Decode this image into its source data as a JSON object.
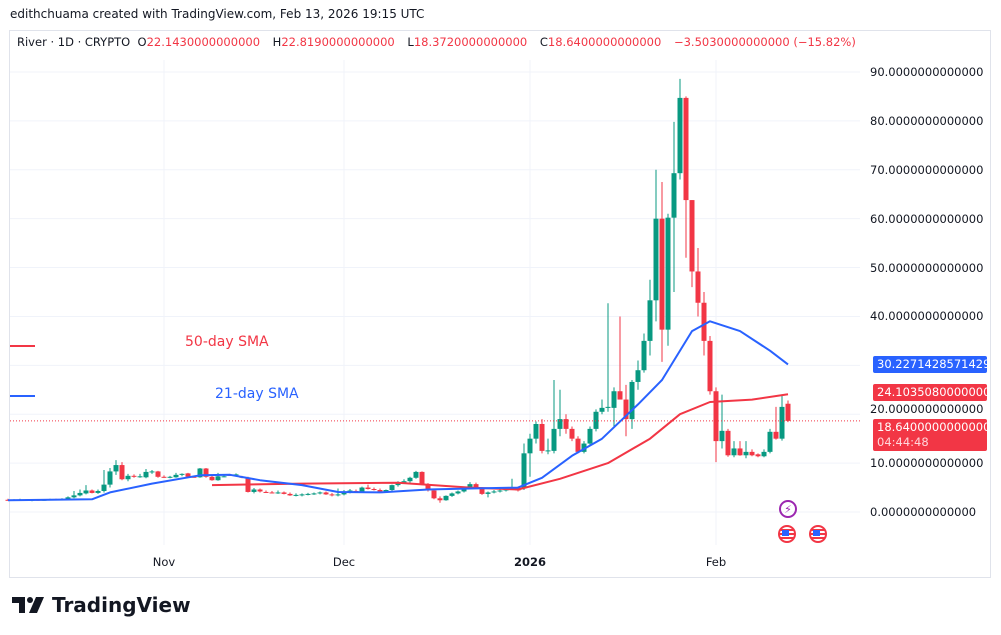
{
  "credit": "edithchuama created with TradingView.com, Feb 13, 2026 19:15 UTC",
  "legend": {
    "symbol": "River · 1D · CRYPTO",
    "open_key": "O",
    "open": "22.1430000000000",
    "high_key": "H",
    "high": "22.8190000000000",
    "low_key": "L",
    "low": "18.3720000000000",
    "close_key": "C",
    "close": "18.6400000000000",
    "change": "−3.5030000000000 (−15.82%)"
  },
  "colors": {
    "up": "#089981",
    "down": "#f23645",
    "sma21": "#2962ff",
    "sma50": "#f23645",
    "grid": "#f0f3fa"
  },
  "annotations": {
    "sma50_label": "50-day SMA",
    "sma21_label": "21-day SMA"
  },
  "price_tags": {
    "sma21": "30.2271428571429",
    "sma50": "24.1035080000000",
    "last": "18.6400000000000",
    "countdown": "04:44:48"
  },
  "logo": {
    "text": "TradingView"
  },
  "icons": [
    "lightning-event-icon",
    "us-flag-event-icon",
    "us-flag-event-icon"
  ],
  "chart_data": {
    "type": "candlestick",
    "ylim": [
      -10,
      100
    ],
    "y_ticks": [
      {
        "v": 90,
        "label": "90.0000000000000"
      },
      {
        "v": 80,
        "label": "80.0000000000000"
      },
      {
        "v": 70,
        "label": "70.0000000000000"
      },
      {
        "v": 60,
        "label": "60.0000000000000"
      },
      {
        "v": 50,
        "label": "50.0000000000000"
      },
      {
        "v": 40,
        "label": "40.0000000000000"
      },
      {
        "v": 30,
        "label": ""
      },
      {
        "v": 20,
        "label": "20.0000000000000"
      },
      {
        "v": 10,
        "label": "10.0000000000000"
      },
      {
        "v": 0,
        "label": "0.0000000000000"
      }
    ],
    "x_ticks": [
      {
        "i": 26,
        "label": "Nov",
        "bold": false
      },
      {
        "i": 56,
        "label": "Dec",
        "bold": false
      },
      {
        "i": 87,
        "label": "2026",
        "bold": true
      },
      {
        "i": 118,
        "label": "Feb",
        "bold": false
      }
    ],
    "candles_ohlc": [
      [
        2.5,
        2.7,
        2.3,
        2.4
      ],
      [
        2.4,
        2.6,
        2.3,
        2.5
      ],
      [
        2.5,
        2.7,
        2.4,
        2.5
      ],
      [
        2.5,
        2.6,
        2.3,
        2.4
      ],
      [
        2.4,
        2.6,
        2.2,
        2.5
      ],
      [
        2.5,
        2.6,
        2.3,
        2.4
      ],
      [
        2.4,
        2.6,
        2.3,
        2.5
      ],
      [
        2.5,
        2.7,
        2.4,
        2.6
      ],
      [
        2.6,
        2.7,
        2.4,
        2.5
      ],
      [
        2.5,
        2.8,
        2.4,
        2.6
      ],
      [
        2.6,
        3.2,
        2.5,
        3.0
      ],
      [
        3.0,
        4.3,
        2.8,
        3.4
      ],
      [
        3.4,
        4.6,
        3.2,
        3.9
      ],
      [
        3.8,
        5.5,
        3.6,
        4.4
      ],
      [
        4.4,
        4.6,
        3.8,
        3.9
      ],
      [
        3.9,
        4.6,
        3.7,
        4.3
      ],
      [
        4.3,
        8.6,
        4.0,
        5.6
      ],
      [
        5.6,
        9.0,
        5.0,
        8.3
      ],
      [
        8.3,
        10.6,
        7.6,
        9.6
      ],
      [
        9.6,
        10.2,
        6.5,
        6.7
      ],
      [
        6.7,
        7.8,
        6.3,
        7.4
      ],
      [
        7.4,
        7.7,
        7.0,
        7.2
      ],
      [
        7.2,
        7.8,
        7.0,
        7.3
      ],
      [
        7.1,
        8.8,
        6.9,
        8.2
      ],
      [
        8.2,
        8.6,
        7.8,
        8.3
      ],
      [
        8.3,
        8.4,
        7.0,
        7.2
      ],
      [
        7.2,
        7.5,
        7.0,
        7.1
      ],
      [
        7.1,
        7.4,
        6.9,
        7.2
      ],
      [
        7.1,
        8.0,
        7.0,
        7.6
      ],
      [
        7.6,
        7.9,
        7.3,
        7.8
      ],
      [
        7.9,
        8.0,
        7.1,
        7.2
      ],
      [
        7.2,
        7.4,
        7.0,
        7.1
      ],
      [
        7.1,
        9.0,
        7.0,
        8.9
      ],
      [
        8.9,
        9.0,
        7.0,
        7.2
      ],
      [
        7.2,
        7.4,
        6.4,
        6.5
      ],
      [
        6.5,
        8.0,
        6.4,
        7.3
      ],
      [
        7.3,
        7.5,
        7.1,
        7.3
      ],
      [
        7.6,
        7.8,
        7.4,
        7.5
      ],
      [
        7.5,
        7.9,
        7.3,
        7.7
      ],
      [
        7.2,
        7.4,
        6.9,
        7.0
      ],
      [
        7.0,
        7.2,
        4.0,
        4.1
      ],
      [
        4.1,
        4.9,
        3.8,
        4.6
      ],
      [
        4.6,
        4.8,
        4.0,
        4.2
      ],
      [
        4.1,
        4.4,
        3.9,
        4.0
      ],
      [
        4.0,
        4.3,
        3.8,
        3.9
      ],
      [
        3.9,
        4.4,
        3.7,
        4.0
      ],
      [
        4.0,
        4.2,
        3.6,
        3.7
      ],
      [
        3.7,
        4.0,
        3.3,
        3.4
      ],
      [
        3.4,
        3.8,
        3.2,
        3.5
      ],
      [
        3.5,
        3.8,
        3.2,
        3.6
      ],
      [
        3.6,
        3.9,
        3.4,
        3.7
      ],
      [
        3.7,
        4.0,
        3.5,
        3.8
      ],
      [
        3.8,
        4.2,
        3.6,
        4.0
      ],
      [
        4.0,
        4.2,
        3.5,
        3.6
      ],
      [
        3.6,
        3.9,
        3.2,
        3.4
      ],
      [
        3.4,
        4.8,
        3.2,
        3.6
      ],
      [
        3.6,
        4.5,
        3.4,
        4.1
      ],
      [
        4.1,
        4.7,
        3.8,
        4.4
      ],
      [
        4.3,
        4.6,
        3.9,
        4.1
      ],
      [
        4.1,
        5.2,
        3.9,
        5.0
      ],
      [
        5.0,
        5.6,
        4.6,
        4.7
      ],
      [
        4.7,
        5.0,
        4.4,
        4.5
      ],
      [
        4.5,
        4.8,
        4.1,
        4.2
      ],
      [
        4.2,
        4.6,
        3.9,
        4.5
      ],
      [
        4.5,
        5.6,
        4.3,
        5.5
      ],
      [
        5.5,
        6.3,
        5.2,
        6.0
      ],
      [
        6.0,
        6.7,
        5.8,
        6.3
      ],
      [
        6.3,
        7.2,
        6.0,
        7.0
      ],
      [
        7.0,
        8.4,
        6.8,
        8.2
      ],
      [
        8.2,
        8.3,
        5.5,
        5.7
      ],
      [
        5.7,
        5.9,
        4.2,
        4.4
      ],
      [
        4.4,
        4.6,
        2.6,
        2.8
      ],
      [
        2.8,
        3.2,
        1.9,
        2.4
      ],
      [
        2.4,
        3.4,
        2.3,
        3.3
      ],
      [
        3.3,
        4.0,
        3.1,
        3.8
      ],
      [
        3.8,
        4.4,
        3.6,
        4.2
      ],
      [
        4.2,
        5.0,
        4.0,
        4.8
      ],
      [
        4.8,
        6.1,
        4.6,
        5.7
      ],
      [
        5.7,
        6.0,
        4.8,
        4.9
      ],
      [
        4.9,
        5.1,
        3.5,
        3.7
      ],
      [
        3.7,
        4.2,
        3.0,
        4.0
      ],
      [
        4.0,
        4.5,
        3.8,
        4.2
      ],
      [
        4.2,
        4.6,
        4.0,
        4.4
      ],
      [
        4.4,
        5.0,
        4.2,
        4.8
      ],
      [
        4.8,
        6.8,
        4.5,
        5.0
      ],
      [
        5.0,
        5.2,
        4.2,
        4.4
      ],
      [
        5,
        14,
        4.5,
        12
      ],
      [
        12,
        16,
        7.2,
        15
      ],
      [
        15,
        18.5,
        14,
        18
      ],
      [
        18,
        19,
        12,
        12.5
      ],
      [
        12.5,
        15,
        11.8,
        12.6
      ],
      [
        12.5,
        27,
        12,
        17
      ],
      [
        17,
        25,
        15.5,
        19
      ],
      [
        19,
        20,
        16,
        17
      ],
      [
        17,
        17.5,
        14.5,
        15
      ],
      [
        15,
        15.5,
        12,
        12.3
      ],
      [
        12.3,
        14.5,
        12,
        14
      ],
      [
        14,
        17.5,
        13.5,
        17
      ],
      [
        17,
        21,
        16.5,
        20.5
      ],
      [
        20.5,
        23,
        20,
        21.3
      ],
      [
        21.3,
        42.7,
        20.5,
        21.5
      ],
      [
        21.3,
        25.5,
        17.5,
        24.7
      ],
      [
        24.7,
        40,
        23,
        23
      ],
      [
        23,
        26,
        15.5,
        19
      ],
      [
        19,
        27,
        17,
        26.6
      ],
      [
        26.6,
        31,
        25,
        29
      ],
      [
        29,
        36.5,
        28.5,
        35
      ],
      [
        35,
        47.5,
        32,
        43.3
      ],
      [
        43.3,
        70,
        39,
        60
      ],
      [
        60,
        67.5,
        30.7,
        37.3
      ],
      [
        37.3,
        61,
        34,
        60.2
      ],
      [
        60.2,
        79.8,
        45,
        69.3
      ],
      [
        69.3,
        88.6,
        68,
        84.7
      ],
      [
        84.7,
        85,
        52,
        63.8
      ],
      [
        63.8,
        63.8,
        46,
        49.2
      ],
      [
        49.2,
        54,
        40,
        42.8
      ],
      [
        42.8,
        45,
        32,
        35
      ],
      [
        35,
        36,
        24,
        24.7
      ],
      [
        24.7,
        25.5,
        10.2,
        14.5
      ],
      [
        14.5,
        24,
        13,
        16.6
      ],
      [
        16.6,
        17,
        11.3,
        11.6
      ],
      [
        11.6,
        14.5,
        11.2,
        13
      ],
      [
        13,
        14.5,
        11.5,
        11.6
      ],
      [
        11.6,
        14.5,
        11,
        12.3
      ],
      [
        12.3,
        12.8,
        11.4,
        11.6
      ],
      [
        11.8,
        12,
        11.2,
        11.4
      ],
      [
        11.4,
        12.8,
        11.2,
        12.3
      ],
      [
        12.3,
        17,
        12,
        16.4
      ],
      [
        16.4,
        21.5,
        14.8,
        15
      ],
      [
        15,
        24,
        14.6,
        21.5
      ],
      [
        22.143,
        22.819,
        18.372,
        18.64
      ]
    ],
    "sma21": [
      [
        0,
        2.4
      ],
      [
        14,
        2.6
      ],
      [
        17,
        4
      ],
      [
        24,
        5.8
      ],
      [
        32,
        7.5
      ],
      [
        37,
        7.6
      ],
      [
        42,
        6.5
      ],
      [
        49,
        5.5
      ],
      [
        55,
        4.1
      ],
      [
        62,
        4.0
      ],
      [
        70,
        4.6
      ],
      [
        77,
        4.8
      ],
      [
        85,
        5.0
      ],
      [
        89,
        7
      ],
      [
        94,
        11.5
      ],
      [
        99,
        15
      ],
      [
        105,
        22
      ],
      [
        109,
        27
      ],
      [
        114,
        37
      ],
      [
        117,
        39
      ],
      [
        122,
        37
      ],
      [
        127,
        33
      ],
      [
        130,
        30.2
      ]
    ],
    "sma50": [
      [
        34,
        5.5
      ],
      [
        49,
        5.8
      ],
      [
        65,
        6.0
      ],
      [
        77,
        5.0
      ],
      [
        85,
        4.6
      ],
      [
        92,
        6.8
      ],
      [
        100,
        10
      ],
      [
        107,
        15
      ],
      [
        112,
        20
      ],
      [
        117,
        22.5
      ],
      [
        124,
        23
      ],
      [
        130,
        24.1
      ]
    ],
    "last_price": 18.64
  }
}
